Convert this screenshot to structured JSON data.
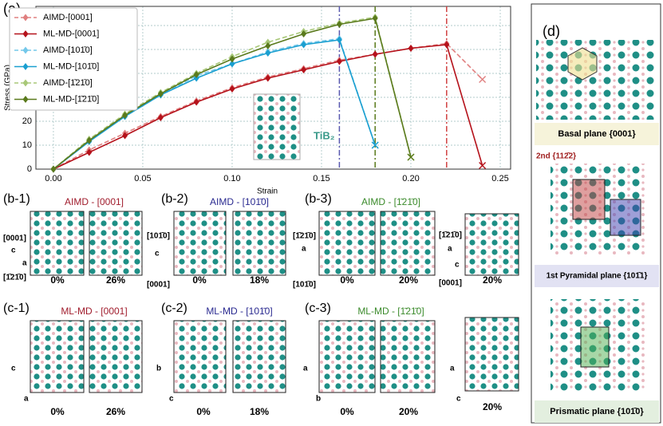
{
  "chart_data": {
    "type": "line",
    "panel_label": "(a)",
    "xlabel": "Strain",
    "ylabel": "Stress (GPa)",
    "annotation": "TiB₂",
    "x": [
      0,
      0.02,
      0.04,
      0.06,
      0.08,
      0.1,
      0.12,
      0.14,
      0.16,
      0.18,
      0.2,
      0.22,
      0.24
    ],
    "series": [
      {
        "name": "AIMD-[0001]",
        "color": "#e08080",
        "dashed": true,
        "values": [
          0,
          8,
          15,
          22,
          28.5,
          34,
          38.5,
          42,
          45.5,
          48,
          50.5,
          52.5,
          37.5
        ]
      },
      {
        "name": "ML-MD-[0001]",
        "color": "#b5121b",
        "dashed": false,
        "values": [
          0,
          7,
          14,
          21.5,
          28,
          33.5,
          38,
          41.5,
          45,
          48,
          50.5,
          52,
          1.5
        ]
      },
      {
        "name": "AIMD-[101̄0]",
        "color": "#74c8ea",
        "dashed": true,
        "values": [
          0,
          12,
          22,
          31,
          39,
          44,
          49,
          52.5,
          54.5,
          10,
          null,
          null,
          null
        ]
      },
      {
        "name": "ML-MD-[101̄0]",
        "color": "#1a9fd0",
        "dashed": false,
        "values": [
          0,
          11.5,
          22,
          31,
          38,
          44,
          48.5,
          52,
          54,
          10,
          null,
          null,
          null
        ]
      },
      {
        "name": "AIMD-[1̄21̄0]",
        "color": "#a8c878",
        "dashed": true,
        "values": [
          0,
          12.5,
          23,
          32,
          40,
          47,
          53,
          57.5,
          61,
          63.5,
          5,
          null,
          null
        ]
      },
      {
        "name": "ML-MD-[1̄21̄0]",
        "color": "#5a7a1c",
        "dashed": false,
        "values": [
          0,
          12,
          22.5,
          31.5,
          39.5,
          46,
          51.5,
          56.5,
          60.5,
          63,
          5,
          null,
          null
        ]
      }
    ],
    "vlines": [
      {
        "x": 0.16,
        "color": "#5a5ab0"
      },
      {
        "x": 0.18,
        "color": "#5a7a1c"
      },
      {
        "x": 0.22,
        "color": "#d04040"
      }
    ],
    "xlim": [
      -0.0098,
      0.2558
    ],
    "ylim": [
      0,
      68
    ],
    "xticks": [
      {
        "value": 0,
        "label": "0.00"
      },
      {
        "value": 0.05,
        "label": "0.05"
      },
      {
        "value": 0.1,
        "label": "0.10"
      },
      {
        "value": 0.15,
        "label": "0.15"
      },
      {
        "value": 0.2,
        "label": "0.20"
      },
      {
        "value": 0.25,
        "label": "0.25"
      }
    ],
    "yticks": [
      0,
      10,
      20,
      30,
      40,
      50,
      60
    ],
    "grid": true,
    "legend": "upper left"
  },
  "panels": [
    {
      "label": "(b-1)",
      "title": "AIMD - [0001]",
      "captions": [
        "0%",
        "26%"
      ],
      "axes": [
        "[0001]",
        "c",
        "a",
        "[1̄21̄0]"
      ]
    },
    {
      "label": "(b-2)",
      "title": "AIMD - [101̄0]",
      "captions": [
        "0%",
        "18%"
      ],
      "axes": [
        "[101̄0]",
        "c",
        "[0001]"
      ]
    },
    {
      "label": "(b-3)",
      "title": "AIMD - [1̄21̄0]",
      "captions": [
        "0%",
        "20%",
        "20%"
      ],
      "axes": [
        "[1̄21̄0]",
        "a",
        "[101̄0]",
        "[1̄21̄0]",
        "a",
        "c",
        "[0001]"
      ]
    },
    {
      "label": "(c-1)",
      "title": "ML-MD - [0001]",
      "captions": [
        "0%",
        "26%"
      ],
      "axes": [
        "c",
        "a"
      ]
    },
    {
      "label": "(c-2)",
      "title": "ML-MD - [101̄0]",
      "captions": [
        "0%",
        "18%"
      ],
      "axes": [
        "b",
        "c"
      ]
    },
    {
      "label": "(c-3)",
      "title": "ML-MD - [1̄21̄0]",
      "captions": [
        "0%",
        "20%",
        "20%"
      ],
      "axes": [
        "a",
        "b",
        "a",
        "c"
      ]
    }
  ],
  "panel_d": {
    "label": "(d)",
    "basal": "Basal plane {0001}",
    "second": "2nd {112̄2}",
    "pyramidal": "1st Pyramidal plane {101̄1}",
    "prismatic": "Prismatic plane {101̄0}"
  }
}
